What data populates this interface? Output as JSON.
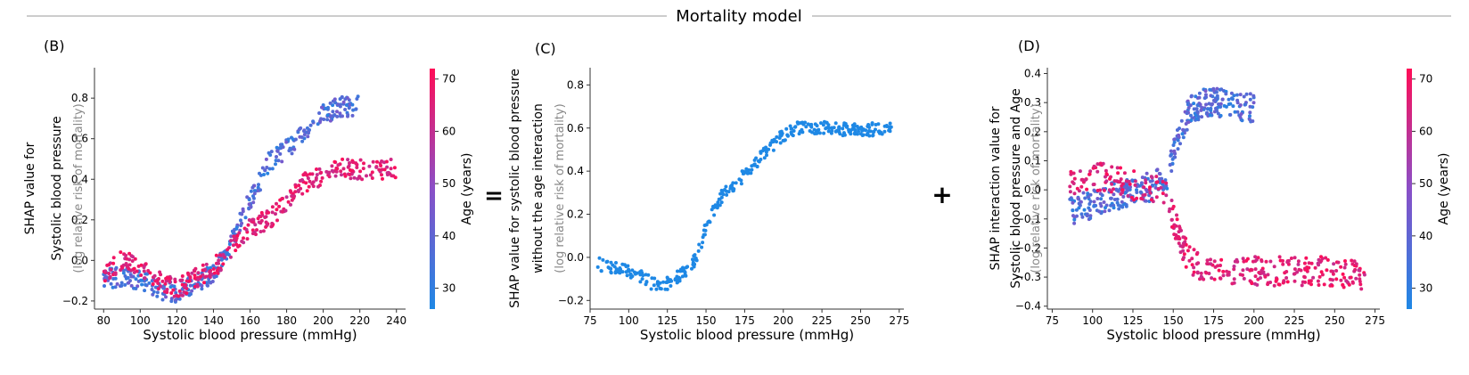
{
  "header": {
    "title": "Mortality model"
  },
  "operators": {
    "equals": "=",
    "plus": "+"
  },
  "colors": {
    "low": "#1e88e5",
    "high": "#ff0d57",
    "text_grey": "#888888",
    "axis": "#333333"
  },
  "chart_data": [
    {
      "panel": "(B)",
      "type": "scatter",
      "xlabel": "Systolic blood pressure (mmHg)",
      "ylabel_lines": [
        "SHAP value for",
        "Systolic blood pressure"
      ],
      "ylabel_note": "(log relative risk of mortality)",
      "xlim": [
        75,
        245
      ],
      "ylim": [
        -0.24,
        0.95
      ],
      "xticks": [
        80,
        100,
        120,
        140,
        160,
        180,
        200,
        220,
        240
      ],
      "yticks": [
        -0.2,
        0.0,
        0.2,
        0.4,
        0.6,
        0.8
      ],
      "color_by": "Age (years)",
      "colorbar": {
        "label": "Age (years)",
        "range": [
          26,
          72
        ],
        "ticks": [
          30,
          40,
          50,
          60,
          70
        ]
      },
      "series": [
        {
          "segment": "young",
          "age_range": [
            28,
            45
          ],
          "points": [
            [
              80,
              -0.09
            ],
            [
              90,
              -0.08
            ],
            [
              100,
              -0.1
            ],
            [
              110,
              -0.14
            ],
            [
              120,
              -0.16
            ],
            [
              130,
              -0.11
            ],
            [
              140,
              -0.06
            ],
            [
              150,
              0.1
            ],
            [
              155,
              0.2
            ],
            [
              160,
              0.3
            ],
            [
              165,
              0.38
            ],
            [
              170,
              0.48
            ],
            [
              180,
              0.55
            ],
            [
              190,
              0.62
            ],
            [
              200,
              0.72
            ],
            [
              210,
              0.76
            ],
            [
              220,
              0.76
            ]
          ]
        },
        {
          "segment": "old",
          "age_range": [
            60,
            72
          ],
          "points": [
            [
              80,
              -0.06
            ],
            [
              90,
              0.0
            ],
            [
              100,
              -0.04
            ],
            [
              110,
              -0.1
            ],
            [
              120,
              -0.14
            ],
            [
              130,
              -0.09
            ],
            [
              140,
              -0.04
            ],
            [
              150,
              0.06
            ],
            [
              155,
              0.12
            ],
            [
              160,
              0.16
            ],
            [
              170,
              0.2
            ],
            [
              180,
              0.28
            ],
            [
              190,
              0.38
            ],
            [
              200,
              0.42
            ],
            [
              210,
              0.45
            ],
            [
              220,
              0.45
            ],
            [
              240,
              0.45
            ]
          ]
        }
      ]
    },
    {
      "panel": "(C)",
      "type": "scatter",
      "xlabel": "Systolic blood pressure (mmHg)",
      "ylabel_lines": [
        "SHAP value for systolic blood pressure",
        "without the age interaction"
      ],
      "ylabel_note": "(log relative risk of mortality)",
      "xlim": [
        75,
        278
      ],
      "ylim": [
        -0.24,
        0.88
      ],
      "xticks": [
        75,
        100,
        125,
        150,
        175,
        200,
        225,
        250,
        275
      ],
      "yticks": [
        -0.2,
        0.0,
        0.2,
        0.4,
        0.6,
        0.8
      ],
      "series": [
        {
          "segment": "main effect",
          "points": [
            [
              80,
              -0.03
            ],
            [
              90,
              -0.05
            ],
            [
              100,
              -0.06
            ],
            [
              110,
              -0.1
            ],
            [
              120,
              -0.14
            ],
            [
              130,
              -0.1
            ],
            [
              140,
              -0.05
            ],
            [
              145,
              0.02
            ],
            [
              150,
              0.15
            ],
            [
              155,
              0.22
            ],
            [
              160,
              0.28
            ],
            [
              170,
              0.35
            ],
            [
              180,
              0.42
            ],
            [
              190,
              0.5
            ],
            [
              200,
              0.57
            ],
            [
              210,
              0.6
            ],
            [
              225,
              0.6
            ],
            [
              250,
              0.59
            ],
            [
              270,
              0.6
            ]
          ]
        }
      ]
    },
    {
      "panel": "(D)",
      "type": "scatter",
      "xlabel": "Systolic blood pressure (mmHg)",
      "ylabel_lines": [
        "SHAP interaction value for",
        "Systolic blood pressure and Age"
      ],
      "ylabel_note": "(log relative risk of mortality)",
      "xlim": [
        72,
        278
      ],
      "ylim": [
        -0.41,
        0.42
      ],
      "xticks": [
        75,
        100,
        125,
        150,
        175,
        200,
        225,
        250,
        275
      ],
      "yticks": [
        -0.4,
        -0.3,
        -0.2,
        -0.1,
        0.0,
        0.1,
        0.2,
        0.3,
        0.4
      ],
      "color_by": "Age (years)",
      "colorbar": {
        "label": "Age (years)",
        "range": [
          26,
          72
        ],
        "ticks": [
          30,
          40,
          50,
          60,
          70
        ]
      },
      "series": [
        {
          "segment": "young",
          "age_range": [
            28,
            45
          ],
          "points": [
            [
              85,
              -0.07
            ],
            [
              100,
              -0.05
            ],
            [
              115,
              -0.02
            ],
            [
              130,
              0.0
            ],
            [
              145,
              0.03
            ],
            [
              150,
              0.12
            ],
            [
              155,
              0.2
            ],
            [
              160,
              0.28
            ],
            [
              170,
              0.3
            ],
            [
              180,
              0.3
            ],
            [
              200,
              0.28
            ]
          ]
        },
        {
          "segment": "old",
          "age_range": [
            60,
            72
          ],
          "points": [
            [
              85,
              0.02
            ],
            [
              100,
              0.05
            ],
            [
              115,
              0.03
            ],
            [
              130,
              0.01
            ],
            [
              145,
              -0.01
            ],
            [
              150,
              -0.1
            ],
            [
              155,
              -0.18
            ],
            [
              160,
              -0.24
            ],
            [
              170,
              -0.27
            ],
            [
              180,
              -0.28
            ],
            [
              200,
              -0.28
            ],
            [
              220,
              -0.28
            ],
            [
              250,
              -0.28
            ],
            [
              270,
              -0.3
            ]
          ]
        }
      ]
    }
  ]
}
